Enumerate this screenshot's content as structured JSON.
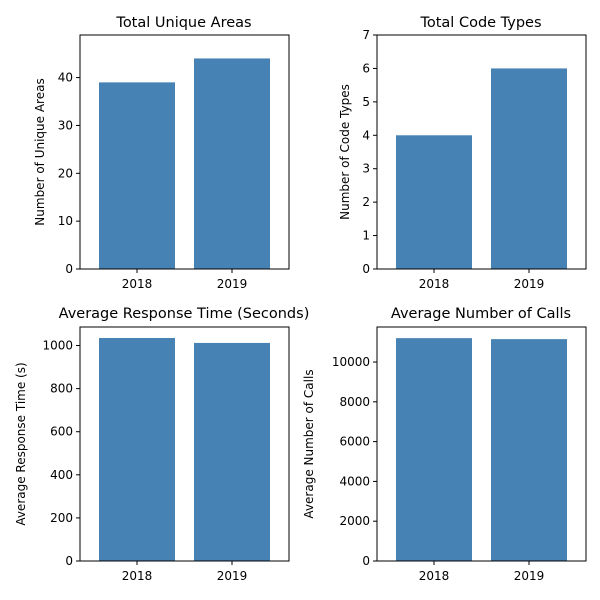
{
  "chart_data": [
    {
      "type": "bar",
      "title": "Total Unique Areas",
      "xlabel": "",
      "ylabel": "Number of Unique Areas",
      "categories": [
        "2018",
        "2019"
      ],
      "values": [
        39,
        44
      ],
      "ylim": [
        0,
        48.9
      ],
      "yticks": [
        0,
        10,
        20,
        30,
        40
      ],
      "color": "#4682b4",
      "grid": false
    },
    {
      "type": "bar",
      "title": "Total Code Types",
      "xlabel": "",
      "ylabel": "Number of Code Types",
      "categories": [
        "2018",
        "2019"
      ],
      "values": [
        4,
        6
      ],
      "ylim": [
        0,
        7
      ],
      "yticks": [
        0,
        1,
        2,
        3,
        4,
        5,
        6,
        7
      ],
      "color": "#4682b4",
      "grid": false
    },
    {
      "type": "bar",
      "title": "Average Response Time (Seconds)",
      "xlabel": "",
      "ylabel": "Average Response Time (s)",
      "categories": [
        "2018",
        "2019"
      ],
      "values": [
        1035,
        1012
      ],
      "ylim": [
        0,
        1086
      ],
      "yticks": [
        0,
        200,
        400,
        600,
        800,
        1000
      ],
      "color": "#4682b4",
      "grid": false
    },
    {
      "type": "bar",
      "title": "Average Number of Calls",
      "xlabel": "",
      "ylabel": "Average Number of Calls",
      "categories": [
        "2018",
        "2019"
      ],
      "values": [
        11200,
        11150
      ],
      "ylim": [
        0,
        11760
      ],
      "yticks": [
        0,
        2000,
        4000,
        6000,
        8000,
        10000
      ],
      "color": "#4682b4",
      "grid": false
    }
  ]
}
